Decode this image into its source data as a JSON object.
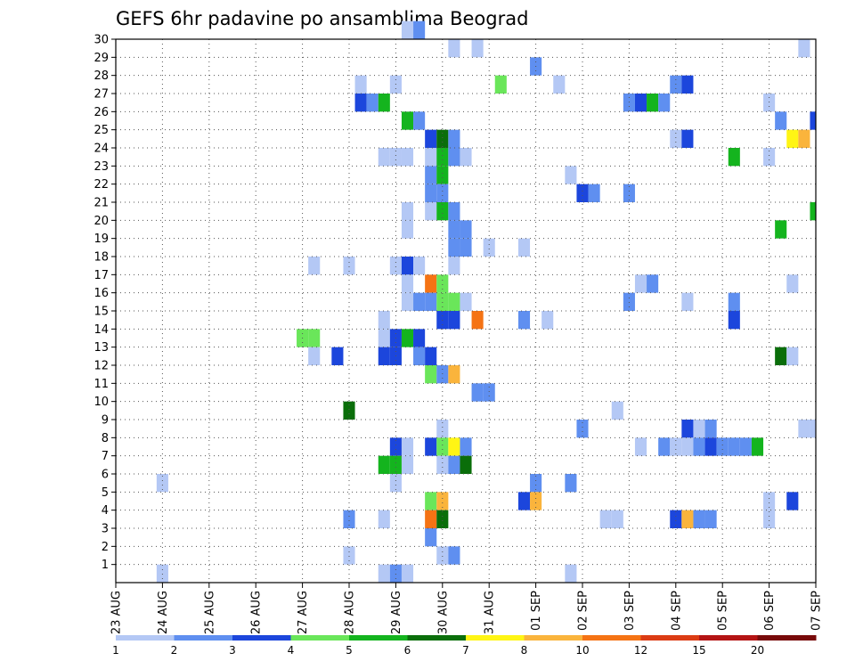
{
  "chart_data": {
    "type": "heatmap",
    "title": "GEFS 6hr padavine po ansamblima Beograd",
    "xlabel": "",
    "ylabel": "",
    "x_tick_labels": [
      "23 AUG",
      "24 AUG",
      "25 AUG",
      "26 AUG",
      "27 AUG",
      "28 AUG",
      "29 AUG",
      "30 AUG",
      "31 AUG",
      "01 SEP",
      "02 SEP",
      "03 SEP",
      "04 SEP",
      "05 SEP",
      "06 SEP",
      "07 SEP"
    ],
    "y_tick_labels": [
      "1",
      "2",
      "3",
      "4",
      "5",
      "6",
      "7",
      "8",
      "9",
      "10",
      "11",
      "12",
      "13",
      "14",
      "15",
      "16",
      "17",
      "18",
      "19",
      "20",
      "21",
      "22",
      "23",
      "24",
      "25",
      "26",
      "27",
      "28",
      "29",
      "30"
    ],
    "x_range_steps": [
      0,
      60
    ],
    "steps_per_day": 4,
    "y_range_members": [
      0,
      30
    ],
    "grid": true,
    "colorbar": {
      "placement": "bottom",
      "labels": [
        "1",
        "2",
        "3",
        "4",
        "5",
        "6",
        "7",
        "8",
        "10",
        "12",
        "15",
        "20"
      ],
      "colors": [
        "#b4c8f5",
        "#5f8ff0",
        "#1c46dc",
        "#6ae65a",
        "#14b41e",
        "#0a6e0a",
        "#fff514",
        "#fab43c",
        "#f57314",
        "#dc3c14",
        "#b41414",
        "#780a0a"
      ]
    },
    "cells": [
      {
        "m": 30,
        "t": 25,
        "c": 0
      },
      {
        "m": 30,
        "t": 26,
        "c": 1
      },
      {
        "m": 29,
        "t": 29,
        "c": 0
      },
      {
        "m": 29,
        "t": 31,
        "c": 0
      },
      {
        "m": 29,
        "t": 59,
        "c": 0
      },
      {
        "m": 28,
        "t": 36,
        "c": 1
      },
      {
        "m": 27,
        "t": 21,
        "c": 0
      },
      {
        "m": 27,
        "t": 24,
        "c": 0
      },
      {
        "m": 27,
        "t": 33,
        "c": 3
      },
      {
        "m": 27,
        "t": 38,
        "c": 0
      },
      {
        "m": 27,
        "t": 48,
        "c": 1
      },
      {
        "m": 27,
        "t": 49,
        "c": 2
      },
      {
        "m": 26,
        "t": 21,
        "c": 2
      },
      {
        "m": 26,
        "t": 22,
        "c": 1
      },
      {
        "m": 26,
        "t": 23,
        "c": 4
      },
      {
        "m": 26,
        "t": 44,
        "c": 1
      },
      {
        "m": 26,
        "t": 45,
        "c": 2
      },
      {
        "m": 26,
        "t": 46,
        "c": 4
      },
      {
        "m": 26,
        "t": 47,
        "c": 1
      },
      {
        "m": 26,
        "t": 56,
        "c": 0
      },
      {
        "m": 25,
        "t": 25,
        "c": 4
      },
      {
        "m": 25,
        "t": 26,
        "c": 1
      },
      {
        "m": 25,
        "t": 57,
        "c": 1
      },
      {
        "m": 25,
        "t": 60,
        "c": 2
      },
      {
        "m": 24,
        "t": 27,
        "c": 2
      },
      {
        "m": 24,
        "t": 28,
        "c": 5
      },
      {
        "m": 24,
        "t": 29,
        "c": 1
      },
      {
        "m": 24,
        "t": 48,
        "c": 0
      },
      {
        "m": 24,
        "t": 49,
        "c": 2
      },
      {
        "m": 24,
        "t": 58,
        "c": 6
      },
      {
        "m": 24,
        "t": 59,
        "c": 7
      },
      {
        "m": 23,
        "t": 23,
        "c": 0
      },
      {
        "m": 23,
        "t": 24,
        "c": 0
      },
      {
        "m": 23,
        "t": 25,
        "c": 0
      },
      {
        "m": 23,
        "t": 27,
        "c": 0
      },
      {
        "m": 23,
        "t": 28,
        "c": 4
      },
      {
        "m": 23,
        "t": 29,
        "c": 1
      },
      {
        "m": 23,
        "t": 30,
        "c": 0
      },
      {
        "m": 23,
        "t": 53,
        "c": 4
      },
      {
        "m": 23,
        "t": 56,
        "c": 0
      },
      {
        "m": 22,
        "t": 27,
        "c": 1
      },
      {
        "m": 22,
        "t": 28,
        "c": 4
      },
      {
        "m": 22,
        "t": 39,
        "c": 0
      },
      {
        "m": 21,
        "t": 27,
        "c": 1
      },
      {
        "m": 21,
        "t": 28,
        "c": 1
      },
      {
        "m": 21,
        "t": 40,
        "c": 2
      },
      {
        "m": 21,
        "t": 41,
        "c": 1
      },
      {
        "m": 21,
        "t": 44,
        "c": 1
      },
      {
        "m": 20,
        "t": 25,
        "c": 0
      },
      {
        "m": 20,
        "t": 27,
        "c": 0
      },
      {
        "m": 20,
        "t": 28,
        "c": 4
      },
      {
        "m": 20,
        "t": 29,
        "c": 1
      },
      {
        "m": 20,
        "t": 60,
        "c": 4
      },
      {
        "m": 19,
        "t": 25,
        "c": 0
      },
      {
        "m": 19,
        "t": 29,
        "c": 1
      },
      {
        "m": 19,
        "t": 30,
        "c": 1
      },
      {
        "m": 19,
        "t": 57,
        "c": 4
      },
      {
        "m": 18,
        "t": 29,
        "c": 1
      },
      {
        "m": 18,
        "t": 30,
        "c": 1
      },
      {
        "m": 18,
        "t": 32,
        "c": 0
      },
      {
        "m": 18,
        "t": 35,
        "c": 0
      },
      {
        "m": 17,
        "t": 17,
        "c": 0
      },
      {
        "m": 17,
        "t": 20,
        "c": 0
      },
      {
        "m": 17,
        "t": 24,
        "c": 0
      },
      {
        "m": 17,
        "t": 25,
        "c": 2
      },
      {
        "m": 17,
        "t": 26,
        "c": 0
      },
      {
        "m": 17,
        "t": 29,
        "c": 0
      },
      {
        "m": 16,
        "t": 25,
        "c": 0
      },
      {
        "m": 16,
        "t": 27,
        "c": 8
      },
      {
        "m": 16,
        "t": 28,
        "c": 3
      },
      {
        "m": 16,
        "t": 45,
        "c": 0
      },
      {
        "m": 16,
        "t": 46,
        "c": 1
      },
      {
        "m": 16,
        "t": 58,
        "c": 0
      },
      {
        "m": 15,
        "t": 25,
        "c": 0
      },
      {
        "m": 15,
        "t": 26,
        "c": 1
      },
      {
        "m": 15,
        "t": 27,
        "c": 1
      },
      {
        "m": 15,
        "t": 28,
        "c": 3
      },
      {
        "m": 15,
        "t": 29,
        "c": 3
      },
      {
        "m": 15,
        "t": 30,
        "c": 0
      },
      {
        "m": 15,
        "t": 44,
        "c": 1
      },
      {
        "m": 15,
        "t": 49,
        "c": 0
      },
      {
        "m": 15,
        "t": 53,
        "c": 1
      },
      {
        "m": 14,
        "t": 23,
        "c": 0
      },
      {
        "m": 14,
        "t": 28,
        "c": 2
      },
      {
        "m": 14,
        "t": 29,
        "c": 2
      },
      {
        "m": 14,
        "t": 31,
        "c": 8
      },
      {
        "m": 14,
        "t": 35,
        "c": 1
      },
      {
        "m": 14,
        "t": 37,
        "c": 0
      },
      {
        "m": 14,
        "t": 53,
        "c": 2
      },
      {
        "m": 13,
        "t": 16,
        "c": 3
      },
      {
        "m": 13,
        "t": 17,
        "c": 3
      },
      {
        "m": 13,
        "t": 23,
        "c": 0
      },
      {
        "m": 13,
        "t": 24,
        "c": 2
      },
      {
        "m": 13,
        "t": 25,
        "c": 4
      },
      {
        "m": 13,
        "t": 26,
        "c": 2
      },
      {
        "m": 12,
        "t": 17,
        "c": 0
      },
      {
        "m": 12,
        "t": 19,
        "c": 2
      },
      {
        "m": 12,
        "t": 23,
        "c": 2
      },
      {
        "m": 12,
        "t": 24,
        "c": 2
      },
      {
        "m": 12,
        "t": 26,
        "c": 1
      },
      {
        "m": 12,
        "t": 27,
        "c": 2
      },
      {
        "m": 12,
        "t": 57,
        "c": 5
      },
      {
        "m": 12,
        "t": 58,
        "c": 0
      },
      {
        "m": 11,
        "t": 27,
        "c": 3
      },
      {
        "m": 11,
        "t": 28,
        "c": 1
      },
      {
        "m": 11,
        "t": 29,
        "c": 7
      },
      {
        "m": 10,
        "t": 31,
        "c": 1
      },
      {
        "m": 10,
        "t": 32,
        "c": 1
      },
      {
        "m": 9,
        "t": 20,
        "c": 5
      },
      {
        "m": 9,
        "t": 43,
        "c": 0
      },
      {
        "m": 8,
        "t": 28,
        "c": 0
      },
      {
        "m": 8,
        "t": 40,
        "c": 1
      },
      {
        "m": 8,
        "t": 49,
        "c": 2
      },
      {
        "m": 8,
        "t": 50,
        "c": 0
      },
      {
        "m": 8,
        "t": 51,
        "c": 1
      },
      {
        "m": 8,
        "t": 59,
        "c": 0
      },
      {
        "m": 8,
        "t": 60,
        "c": 0
      },
      {
        "m": 7,
        "t": 24,
        "c": 2
      },
      {
        "m": 7,
        "t": 25,
        "c": 0
      },
      {
        "m": 7,
        "t": 27,
        "c": 2
      },
      {
        "m": 7,
        "t": 28,
        "c": 3
      },
      {
        "m": 7,
        "t": 29,
        "c": 6
      },
      {
        "m": 7,
        "t": 30,
        "c": 1
      },
      {
        "m": 7,
        "t": 45,
        "c": 0
      },
      {
        "m": 7,
        "t": 47,
        "c": 1
      },
      {
        "m": 7,
        "t": 48,
        "c": 0
      },
      {
        "m": 7,
        "t": 49,
        "c": 0
      },
      {
        "m": 7,
        "t": 50,
        "c": 1
      },
      {
        "m": 7,
        "t": 51,
        "c": 2
      },
      {
        "m": 7,
        "t": 52,
        "c": 1
      },
      {
        "m": 7,
        "t": 53,
        "c": 1
      },
      {
        "m": 7,
        "t": 54,
        "c": 1
      },
      {
        "m": 7,
        "t": 55,
        "c": 4
      },
      {
        "m": 6,
        "t": 23,
        "c": 4
      },
      {
        "m": 6,
        "t": 24,
        "c": 4
      },
      {
        "m": 6,
        "t": 25,
        "c": 0
      },
      {
        "m": 6,
        "t": 28,
        "c": 0
      },
      {
        "m": 6,
        "t": 29,
        "c": 1
      },
      {
        "m": 6,
        "t": 30,
        "c": 5
      },
      {
        "m": 5,
        "t": 4,
        "c": 0
      },
      {
        "m": 5,
        "t": 24,
        "c": 0
      },
      {
        "m": 5,
        "t": 36,
        "c": 1
      },
      {
        "m": 5,
        "t": 39,
        "c": 1
      },
      {
        "m": 4,
        "t": 27,
        "c": 3
      },
      {
        "m": 4,
        "t": 28,
        "c": 7
      },
      {
        "m": 4,
        "t": 35,
        "c": 2
      },
      {
        "m": 4,
        "t": 36,
        "c": 7
      },
      {
        "m": 4,
        "t": 56,
        "c": 0
      },
      {
        "m": 4,
        "t": 58,
        "c": 2
      },
      {
        "m": 3,
        "t": 20,
        "c": 1
      },
      {
        "m": 3,
        "t": 23,
        "c": 0
      },
      {
        "m": 3,
        "t": 27,
        "c": 8
      },
      {
        "m": 3,
        "t": 28,
        "c": 5
      },
      {
        "m": 3,
        "t": 42,
        "c": 0
      },
      {
        "m": 3,
        "t": 43,
        "c": 0
      },
      {
        "m": 3,
        "t": 48,
        "c": 2
      },
      {
        "m": 3,
        "t": 49,
        "c": 7
      },
      {
        "m": 3,
        "t": 50,
        "c": 1
      },
      {
        "m": 3,
        "t": 51,
        "c": 1
      },
      {
        "m": 3,
        "t": 56,
        "c": 0
      },
      {
        "m": 2,
        "t": 27,
        "c": 1
      },
      {
        "m": 1,
        "t": 20,
        "c": 0
      },
      {
        "m": 1,
        "t": 28,
        "c": 0
      },
      {
        "m": 1,
        "t": 29,
        "c": 1
      },
      {
        "m": 0,
        "t": 4,
        "c": 0
      },
      {
        "m": 0,
        "t": 23,
        "c": 0
      },
      {
        "m": 0,
        "t": 24,
        "c": 1
      },
      {
        "m": 0,
        "t": 25,
        "c": 0
      },
      {
        "m": 0,
        "t": 39,
        "c": 0
      }
    ]
  }
}
